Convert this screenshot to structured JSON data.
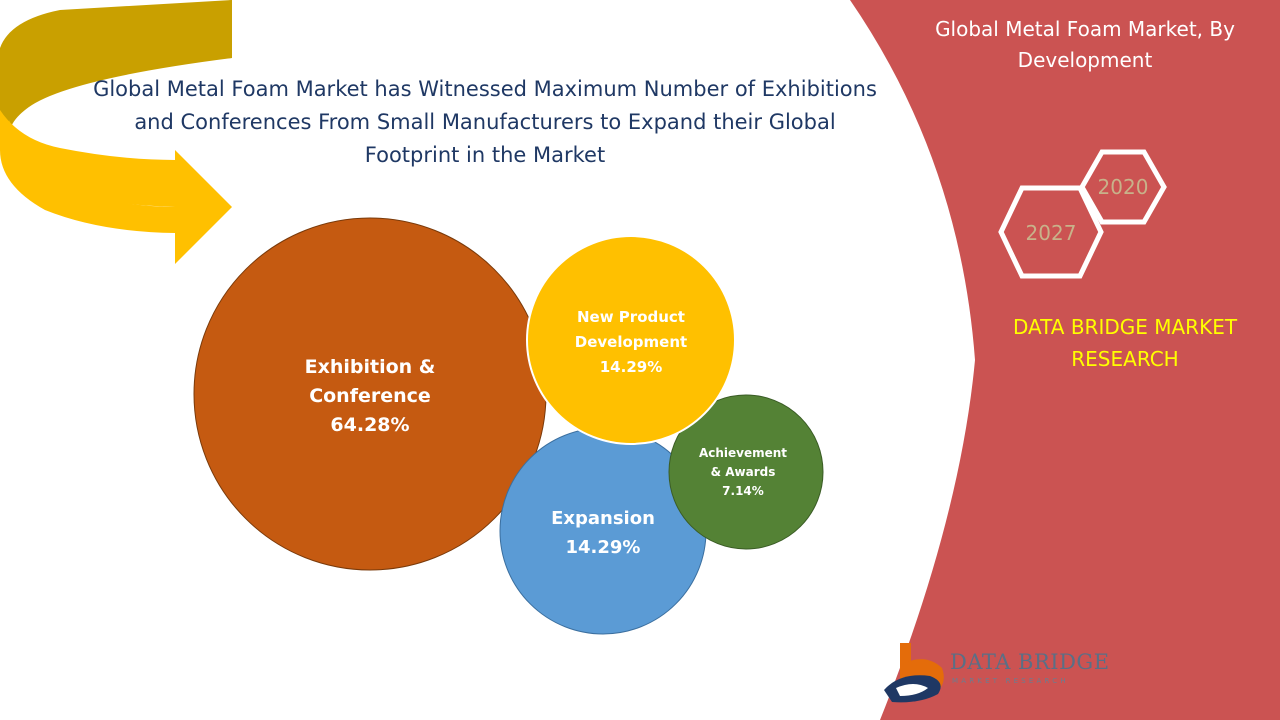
{
  "headline": "Global Metal Foam Market has Witnessed Maximum Number of Exhibitions and Conferences From Small Manufacturers to Expand their Global Footprint in the Market",
  "panel": {
    "title": "Global Metal Foam Market, By Development",
    "brand": "DATA BRIDGE MARKET RESEARCH",
    "hex_years": [
      "2020",
      "2027"
    ],
    "bg_color": "#cb5352"
  },
  "logo": {
    "name": "DATA BRIDGE",
    "tagline": "MARKET RESEARCH",
    "icon": "data-bridge-logo-icon"
  },
  "arrow": {
    "icon": "curved-arrow-icon",
    "color": "#ffc000"
  },
  "chart_data": {
    "type": "bubble",
    "title": "",
    "series": [
      {
        "name": "Exhibition & Conference",
        "value_label": "64.28%",
        "value": 64.28,
        "color": "#c55a11"
      },
      {
        "name": "New Product Development",
        "value_label": "14.29%",
        "value": 14.29,
        "color": "#ffc000"
      },
      {
        "name": "Expansion",
        "value_label": "14.29%",
        "value": 14.29,
        "color": "#5b9bd5"
      },
      {
        "name": "Achievement & Awards",
        "value_label": "7.14%",
        "value": 7.14,
        "color": "#548235"
      }
    ]
  }
}
